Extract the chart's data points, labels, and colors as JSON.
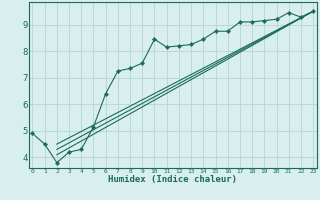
{
  "xlabel": "Humidex (Indice chaleur)",
  "background_color": "#d9eeee",
  "grid_color": "#b8d8d8",
  "line_color": "#1a6b5a",
  "x_ticks": [
    0,
    1,
    2,
    3,
    4,
    5,
    6,
    7,
    8,
    9,
    10,
    11,
    12,
    13,
    14,
    15,
    16,
    17,
    18,
    19,
    20,
    21,
    22,
    23
  ],
  "y_ticks": [
    4,
    5,
    6,
    7,
    8,
    9
  ],
  "xlim": [
    -0.3,
    23.3
  ],
  "ylim": [
    3.6,
    9.85
  ],
  "line1_x": [
    0,
    1,
    2,
    3,
    4,
    5,
    6,
    7,
    8,
    9,
    10,
    11,
    12,
    13,
    14,
    15,
    16,
    17,
    18,
    19,
    20,
    21,
    22,
    23
  ],
  "line1_y": [
    4.9,
    4.5,
    3.8,
    4.2,
    4.3,
    5.15,
    6.4,
    7.25,
    7.35,
    7.55,
    8.45,
    8.15,
    8.2,
    8.25,
    8.45,
    8.75,
    8.75,
    9.1,
    9.1,
    9.15,
    9.2,
    9.45,
    9.28,
    9.5
  ],
  "line2_x": [
    2,
    23
  ],
  "line2_y": [
    4.5,
    9.5
  ],
  "line3_x": [
    2,
    23
  ],
  "line3_y": [
    4.3,
    9.5
  ],
  "line4_x": [
    2,
    23
  ],
  "line4_y": [
    4.1,
    9.5
  ]
}
